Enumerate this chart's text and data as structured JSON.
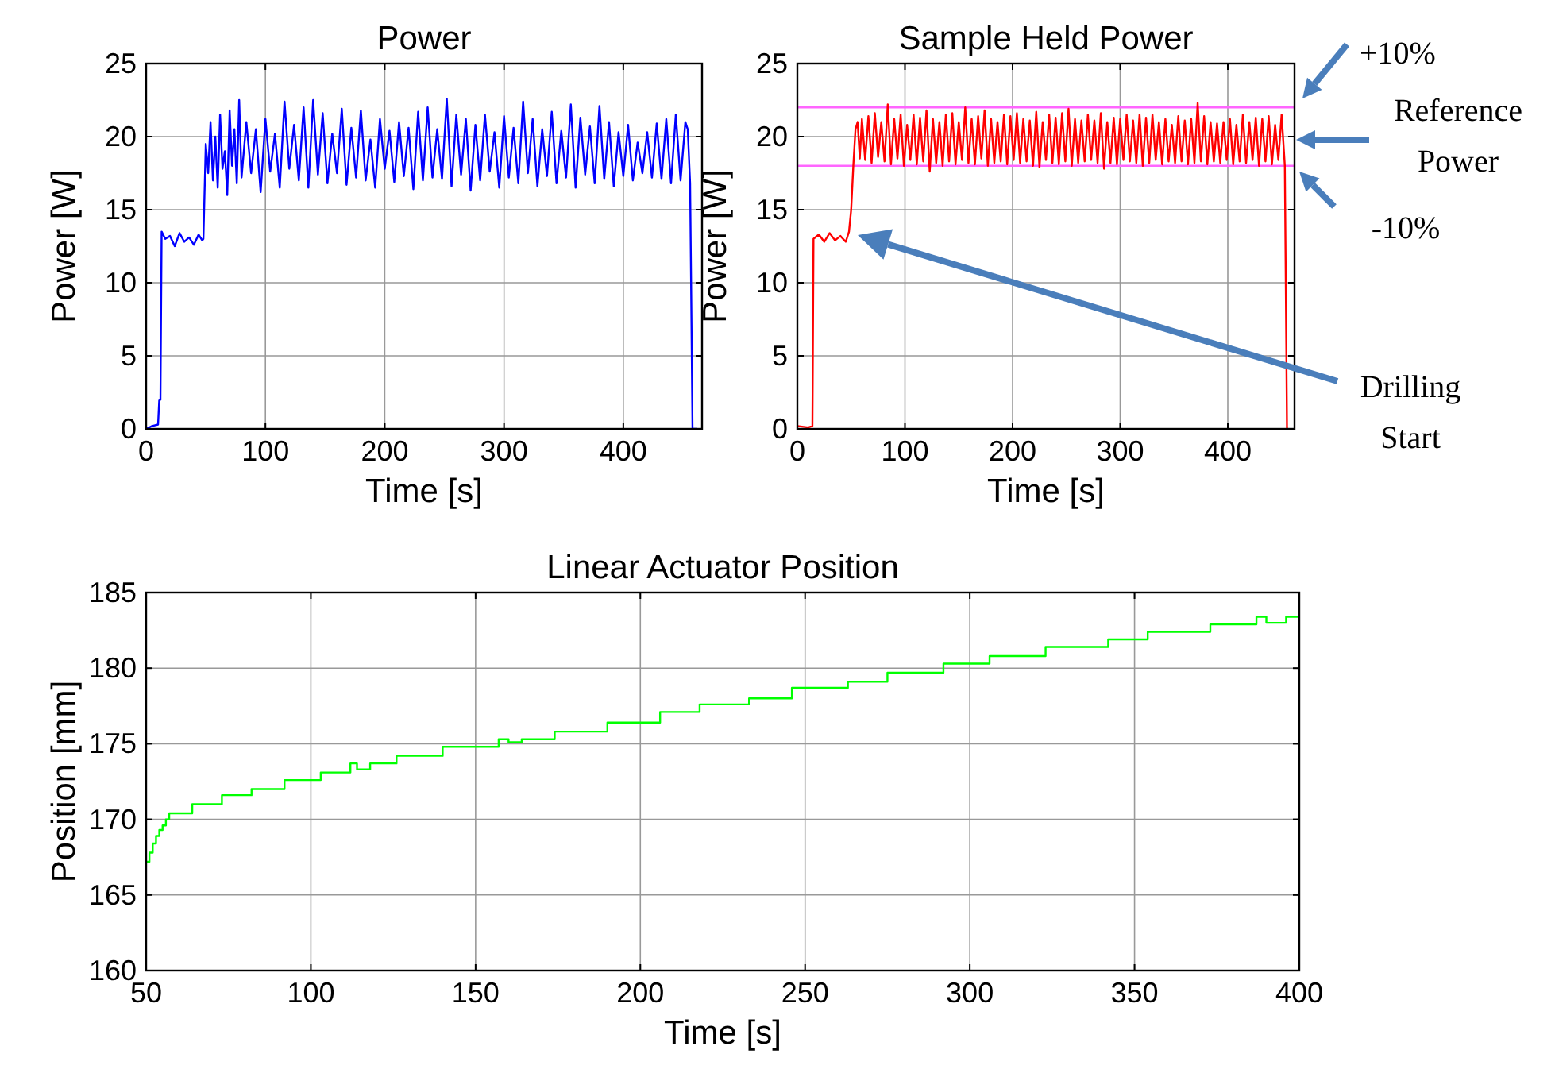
{
  "chart_data": [
    {
      "type": "line",
      "title": "Power",
      "xlabel": "Time [s]",
      "ylabel": "Power [W]",
      "xlim": [
        0,
        466
      ],
      "ylim": [
        0,
        25
      ],
      "xticks": [
        0,
        100,
        200,
        300,
        400
      ],
      "yticks": [
        0,
        5,
        10,
        15,
        20,
        25
      ],
      "grid": true,
      "series": [
        {
          "color": "#0000ff",
          "x": [
            0,
            5,
            10,
            11,
            12,
            13,
            16,
            20,
            24,
            28,
            32,
            36,
            40,
            44,
            47,
            48,
            50,
            52,
            54,
            56,
            58,
            60,
            62,
            64,
            66,
            68,
            70,
            72,
            74,
            76,
            78,
            80,
            84,
            88,
            92,
            96,
            100,
            104,
            108,
            112,
            116,
            120,
            124,
            128,
            132,
            136,
            140,
            144,
            148,
            152,
            156,
            160,
            164,
            168,
            172,
            176,
            180,
            184,
            188,
            192,
            196,
            200,
            204,
            208,
            212,
            216,
            220,
            224,
            228,
            232,
            236,
            240,
            244,
            248,
            252,
            256,
            260,
            264,
            268,
            272,
            276,
            280,
            284,
            288,
            292,
            296,
            300,
            304,
            308,
            312,
            316,
            320,
            324,
            328,
            332,
            336,
            340,
            344,
            348,
            352,
            356,
            360,
            364,
            368,
            372,
            376,
            380,
            384,
            388,
            392,
            396,
            400,
            404,
            408,
            412,
            416,
            420,
            424,
            428,
            432,
            436,
            440,
            444,
            448,
            452,
            454,
            456,
            458,
            462
          ],
          "values": [
            0,
            0.2,
            0.3,
            2,
            2,
            13.5,
            13,
            13.2,
            12.5,
            13.4,
            12.8,
            13.1,
            12.6,
            13.3,
            12.9,
            13,
            19.5,
            17.5,
            21,
            17,
            20,
            16.5,
            21.5,
            17.8,
            19,
            16,
            21.8,
            18,
            20.5,
            16.8,
            22.5,
            17.2,
            21,
            17.5,
            20.5,
            16.2,
            21.2,
            17.6,
            20.2,
            16.5,
            22.4,
            17.8,
            20.8,
            17,
            22,
            16.5,
            22.5,
            17.4,
            21.6,
            16.8,
            20.2,
            17.5,
            21.9,
            16.7,
            20.6,
            17.2,
            21.8,
            17,
            19.8,
            16.5,
            21.2,
            17.8,
            20.4,
            16.9,
            21,
            17.3,
            20.6,
            16.4,
            21.7,
            17,
            22,
            17.2,
            20.5,
            17.1,
            22.6,
            16.6,
            21.5,
            17.4,
            21.2,
            16.3,
            20.8,
            17,
            21.5,
            17.6,
            20.3,
            16.5,
            21.4,
            17.2,
            20.6,
            16.8,
            22.4,
            17.5,
            21.2,
            16.6,
            20.5,
            17.3,
            21.7,
            16.8,
            20.4,
            17.2,
            22.2,
            16.5,
            21.3,
            17.4,
            20.7,
            16.8,
            22.1,
            17.1,
            21,
            16.6,
            20.3,
            17.3,
            20.8,
            17,
            19.6,
            17.5,
            20.3,
            17.2,
            20.9,
            17.1,
            21.2,
            16.8,
            21.5,
            17,
            21,
            20.5,
            16.8,
            0,
            0
          ]
        }
      ]
    },
    {
      "type": "line",
      "title": "Sample Held Power",
      "xlabel": "Time [s]",
      "ylabel": "Power [W]",
      "xlim": [
        0,
        462
      ],
      "ylim": [
        0,
        25
      ],
      "xticks": [
        0,
        100,
        200,
        300,
        400
      ],
      "yticks": [
        0,
        5,
        10,
        15,
        20,
        25
      ],
      "grid": true,
      "ref_lines": [
        {
          "axis": "y",
          "value": 22,
          "color": "#ff66ff"
        },
        {
          "axis": "y",
          "value": 18,
          "color": "#ff66ff"
        }
      ],
      "annotations": [
        "+10%",
        "Reference Power",
        "-10%",
        "Drilling Start"
      ],
      "series": [
        {
          "color": "#ff0000",
          "x": [
            0,
            10,
            14,
            15,
            20,
            25,
            30,
            35,
            40,
            45,
            48,
            50,
            52,
            54,
            56,
            58,
            60,
            63,
            66,
            69,
            72,
            75,
            78,
            81,
            84,
            87,
            90,
            93,
            96,
            99,
            102,
            105,
            108,
            111,
            114,
            117,
            120,
            123,
            126,
            129,
            132,
            135,
            138,
            141,
            144,
            147,
            150,
            153,
            156,
            159,
            162,
            165,
            168,
            171,
            174,
            177,
            180,
            183,
            186,
            189,
            192,
            195,
            198,
            201,
            204,
            207,
            210,
            213,
            216,
            219,
            222,
            225,
            228,
            231,
            234,
            237,
            240,
            243,
            246,
            249,
            252,
            255,
            258,
            261,
            264,
            267,
            270,
            273,
            276,
            279,
            282,
            285,
            288,
            291,
            294,
            297,
            300,
            303,
            306,
            309,
            312,
            315,
            318,
            321,
            324,
            327,
            330,
            333,
            336,
            339,
            342,
            345,
            348,
            351,
            354,
            357,
            360,
            363,
            366,
            369,
            372,
            375,
            378,
            381,
            384,
            387,
            390,
            393,
            396,
            399,
            402,
            405,
            408,
            411,
            414,
            417,
            420,
            423,
            426,
            429,
            432,
            435,
            438,
            441,
            444,
            447,
            450,
            453,
            455,
            456
          ],
          "values": [
            0.2,
            0.1,
            0.2,
            13,
            13.3,
            12.8,
            13.4,
            12.9,
            13.2,
            12.8,
            13.5,
            15,
            18,
            20.5,
            21,
            18.5,
            21.2,
            18.4,
            21.4,
            18.2,
            21.6,
            18.6,
            21,
            18.3,
            22.2,
            18.1,
            21.2,
            18.5,
            21.5,
            18,
            20.8,
            18.4,
            21.5,
            18.1,
            21.3,
            18.3,
            21.8,
            17.6,
            21.2,
            18.2,
            21,
            18,
            21.5,
            18.3,
            21.6,
            18.1,
            21,
            18.4,
            22,
            18.2,
            21.2,
            18.1,
            21.4,
            18.5,
            21.8,
            18,
            21.2,
            18.2,
            21,
            18.3,
            21.5,
            18.1,
            21.4,
            18.4,
            21.6,
            18.2,
            21.2,
            18.3,
            21.1,
            18,
            21.7,
            17.9,
            21,
            18.4,
            21.5,
            18.2,
            21.3,
            18.1,
            21.6,
            18.3,
            21.9,
            18,
            21.2,
            18.2,
            21.1,
            18.3,
            21.5,
            18.4,
            21.1,
            18.2,
            21.6,
            17.8,
            21,
            18.2,
            21.3,
            18.1,
            21.2,
            18.4,
            21.5,
            18.3,
            21.1,
            18.2,
            21.5,
            18,
            21.3,
            18.2,
            21.5,
            18.4,
            21,
            18.1,
            21.2,
            18.3,
            20.8,
            18.2,
            21.4,
            18.3,
            21.1,
            18.1,
            21.2,
            18.2,
            22.3,
            18.3,
            21.4,
            18.1,
            21,
            18.3,
            20.9,
            18.2,
            21,
            18.4,
            21.2,
            18.1,
            20.8,
            18.3,
            21.5,
            18.2,
            21,
            18.4,
            21.3,
            18,
            21.2,
            18.3,
            21.4,
            18.1,
            20.8,
            18.4,
            21.5,
            18,
            0,
            0
          ]
        }
      ]
    },
    {
      "type": "step",
      "title": "Linear Actuator Position",
      "xlabel": "Time [s]",
      "ylabel": "Position [mm]",
      "xlim": [
        50,
        400
      ],
      "ylim": [
        160,
        185
      ],
      "xticks": [
        50,
        100,
        150,
        200,
        250,
        300,
        350,
        400
      ],
      "yticks": [
        160,
        165,
        170,
        175,
        180,
        185
      ],
      "grid": true,
      "series": [
        {
          "color": "#00ff00",
          "x": [
            50,
            51,
            52,
            53,
            54,
            55,
            56,
            57,
            64,
            73,
            82,
            92,
            103,
            112,
            114,
            118,
            126,
            140,
            157,
            160,
            164,
            174,
            190,
            206,
            218,
            233,
            246,
            263,
            275,
            292,
            306,
            323,
            342,
            354,
            373,
            387,
            390,
            396,
            400
          ],
          "values": [
            167.2,
            167.8,
            168.4,
            168.9,
            169.3,
            169.6,
            170,
            170.4,
            171,
            171.6,
            172,
            172.6,
            173.1,
            173.7,
            173.3,
            173.7,
            174.2,
            174.8,
            175.3,
            175.1,
            175.3,
            175.8,
            176.4,
            177.1,
            177.6,
            178,
            178.7,
            179.1,
            179.7,
            180.3,
            180.8,
            181.4,
            181.9,
            182.4,
            182.9,
            183.4,
            183,
            183.4,
            183.4
          ]
        }
      ]
    }
  ]
}
